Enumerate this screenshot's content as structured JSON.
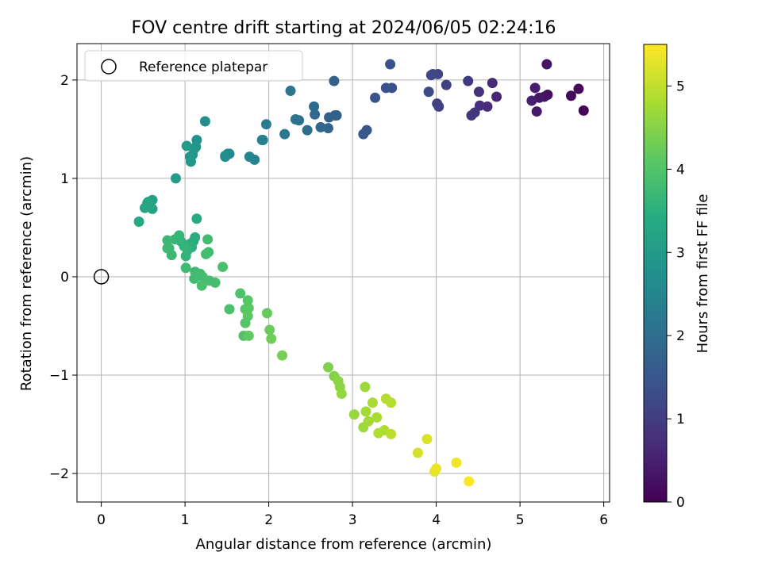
{
  "chart_data": {
    "type": "scatter",
    "title": "FOV centre drift starting at 2024/06/05 02:24:16",
    "xlabel": "Angular distance from reference (arcmin)",
    "ylabel": "Rotation from reference (arcmin)",
    "xlim": [
      -0.29,
      6.07
    ],
    "ylim": [
      -2.29,
      2.37
    ],
    "xticks": [
      0,
      1,
      2,
      3,
      4,
      5,
      6
    ],
    "yticks": [
      -2,
      -1,
      0,
      1,
      2
    ],
    "xtick_labels": [
      "0",
      "1",
      "2",
      "3",
      "4",
      "5",
      "6"
    ],
    "ytick_labels": [
      "−2",
      "−1",
      "0",
      "1",
      "2"
    ],
    "grid": true,
    "legend": {
      "position": "top-left",
      "entries": [
        "Reference platepar"
      ]
    },
    "reference_point": {
      "x": 0,
      "y": 0,
      "label": "Reference platepar"
    },
    "colorbar": {
      "label": "Hours from first FF file",
      "colormap": "viridis",
      "range": [
        0,
        5.5
      ],
      "ticks": [
        0,
        1,
        2,
        3,
        4,
        5
      ],
      "tick_labels": [
        "0",
        "1",
        "2",
        "3",
        "4",
        "5"
      ]
    },
    "points": [
      [
        5.76,
        1.69,
        0.05
      ],
      [
        5.7,
        1.91,
        0.1
      ],
      [
        5.61,
        1.84,
        0.15
      ],
      [
        5.33,
        1.85,
        0.2
      ],
      [
        5.29,
        1.83,
        0.25
      ],
      [
        5.32,
        2.16,
        0.3
      ],
      [
        5.23,
        1.82,
        0.35
      ],
      [
        5.2,
        1.68,
        0.4
      ],
      [
        5.18,
        1.92,
        0.45
      ],
      [
        5.14,
        1.79,
        0.5
      ],
      [
        4.72,
        1.83,
        0.6
      ],
      [
        4.67,
        1.97,
        0.65
      ],
      [
        4.61,
        1.73,
        0.7
      ],
      [
        4.52,
        1.74,
        0.75
      ],
      [
        4.51,
        1.88,
        0.8
      ],
      [
        4.46,
        1.67,
        0.85
      ],
      [
        4.42,
        1.64,
        0.9
      ],
      [
        4.38,
        1.99,
        0.95
      ],
      [
        4.12,
        1.95,
        1.05
      ],
      [
        4.01,
        1.76,
        1.1
      ],
      [
        4.03,
        1.73,
        1.1
      ],
      [
        4.02,
        2.06,
        1.15
      ],
      [
        3.96,
        2.06,
        1.15
      ],
      [
        3.94,
        2.05,
        1.2
      ],
      [
        3.91,
        1.88,
        1.25
      ],
      [
        3.47,
        1.92,
        1.35
      ],
      [
        3.45,
        2.16,
        1.4
      ],
      [
        3.4,
        1.92,
        1.4
      ],
      [
        3.27,
        1.82,
        1.45
      ],
      [
        3.17,
        1.49,
        1.5
      ],
      [
        3.13,
        1.45,
        1.55
      ],
      [
        2.81,
        1.64,
        1.65
      ],
      [
        2.79,
        1.64,
        1.7
      ],
      [
        2.78,
        1.99,
        1.7
      ],
      [
        2.72,
        1.62,
        1.75
      ],
      [
        2.71,
        1.51,
        1.8
      ],
      [
        2.62,
        1.52,
        1.85
      ],
      [
        2.55,
        1.65,
        1.9
      ],
      [
        2.54,
        1.73,
        1.95
      ],
      [
        2.46,
        1.49,
        2.0
      ],
      [
        2.36,
        1.59,
        2.05
      ],
      [
        2.32,
        1.6,
        2.1
      ],
      [
        2.26,
        1.89,
        2.15
      ],
      [
        2.19,
        1.45,
        2.2
      ],
      [
        1.97,
        1.55,
        2.3
      ],
      [
        1.93,
        1.39,
        2.35
      ],
      [
        1.92,
        1.39,
        2.4
      ],
      [
        1.83,
        1.19,
        2.45
      ],
      [
        1.77,
        1.22,
        2.5
      ],
      [
        1.53,
        1.25,
        2.55
      ],
      [
        1.51,
        1.25,
        2.6
      ],
      [
        1.48,
        1.23,
        2.65
      ],
      [
        1.48,
        1.22,
        2.7
      ],
      [
        1.24,
        1.58,
        2.75
      ],
      [
        1.14,
        1.39,
        2.8
      ],
      [
        1.13,
        1.32,
        2.85
      ],
      [
        1.11,
        1.3,
        2.9
      ],
      [
        1.09,
        1.24,
        2.9
      ],
      [
        1.07,
        1.17,
        2.95
      ],
      [
        1.06,
        1.22,
        2.95
      ],
      [
        1.02,
        1.33,
        3.0
      ],
      [
        0.89,
        1.0,
        3.05
      ],
      [
        0.61,
        0.78,
        3.15
      ],
      [
        0.61,
        0.69,
        3.2
      ],
      [
        0.56,
        0.76,
        3.2
      ],
      [
        0.55,
        0.75,
        3.25
      ],
      [
        0.52,
        0.7,
        3.25
      ],
      [
        0.45,
        0.56,
        3.35
      ],
      [
        1.14,
        0.59,
        3.4
      ],
      [
        1.12,
        0.4,
        3.45
      ],
      [
        1.1,
        0.36,
        3.45
      ],
      [
        1.08,
        0.3,
        3.5
      ],
      [
        1.05,
        0.33,
        3.5
      ],
      [
        1.03,
        0.27,
        3.55
      ],
      [
        1.01,
        0.21,
        3.6
      ],
      [
        0.99,
        0.31,
        3.6
      ],
      [
        0.95,
        0.36,
        3.6
      ],
      [
        0.93,
        0.42,
        3.65
      ],
      [
        0.88,
        0.38,
        3.65
      ],
      [
        0.84,
        0.22,
        3.7
      ],
      [
        0.81,
        0.29,
        3.7
      ],
      [
        0.79,
        0.37,
        3.7
      ],
      [
        0.79,
        0.29,
        3.72
      ],
      [
        1.01,
        0.09,
        3.75
      ],
      [
        1.12,
        0.05,
        3.75
      ],
      [
        1.11,
        -0.02,
        3.78
      ],
      [
        1.18,
        0.03,
        3.8
      ],
      [
        1.21,
        0.0,
        3.8
      ],
      [
        1.25,
        0.23,
        3.8
      ],
      [
        1.27,
        0.38,
        3.82
      ],
      [
        1.28,
        0.25,
        3.82
      ],
      [
        1.29,
        -0.04,
        3.85
      ],
      [
        1.36,
        -0.06,
        3.85
      ],
      [
        1.2,
        -0.09,
        3.88
      ],
      [
        1.45,
        0.1,
        3.9
      ],
      [
        1.53,
        -0.33,
        3.92
      ],
      [
        1.66,
        -0.17,
        3.95
      ],
      [
        1.7,
        -0.6,
        3.98
      ],
      [
        1.72,
        -0.47,
        4.0
      ],
      [
        1.72,
        -0.33,
        4.05
      ],
      [
        1.75,
        -0.24,
        4.05
      ],
      [
        1.76,
        -0.32,
        4.1
      ],
      [
        1.75,
        -0.4,
        4.1
      ],
      [
        1.76,
        -0.6,
        4.15
      ],
      [
        1.98,
        -0.37,
        4.2
      ],
      [
        2.01,
        -0.54,
        4.25
      ],
      [
        2.03,
        -0.63,
        4.3
      ],
      [
        2.16,
        -0.8,
        4.35
      ],
      [
        2.71,
        -0.92,
        4.45
      ],
      [
        2.78,
        -1.01,
        4.5
      ],
      [
        2.83,
        -1.06,
        4.55
      ],
      [
        2.85,
        -1.12,
        4.55
      ],
      [
        2.87,
        -1.19,
        4.6
      ],
      [
        3.02,
        -1.4,
        4.65
      ],
      [
        3.13,
        -1.53,
        4.7
      ],
      [
        3.15,
        -1.12,
        4.7
      ],
      [
        3.16,
        -1.37,
        4.75
      ],
      [
        3.19,
        -1.47,
        4.75
      ],
      [
        3.24,
        -1.28,
        4.8
      ],
      [
        3.29,
        -1.43,
        4.8
      ],
      [
        3.31,
        -1.59,
        4.85
      ],
      [
        3.38,
        -1.56,
        4.85
      ],
      [
        3.4,
        -1.24,
        4.9
      ],
      [
        3.46,
        -1.28,
        4.9
      ],
      [
        3.46,
        -1.6,
        4.95
      ],
      [
        3.78,
        -1.79,
        5.15
      ],
      [
        3.89,
        -1.65,
        5.2
      ],
      [
        3.98,
        -1.98,
        5.3
      ],
      [
        4.0,
        -1.95,
        5.35
      ],
      [
        4.24,
        -1.89,
        5.4
      ],
      [
        4.39,
        -2.08,
        5.5
      ]
    ]
  }
}
